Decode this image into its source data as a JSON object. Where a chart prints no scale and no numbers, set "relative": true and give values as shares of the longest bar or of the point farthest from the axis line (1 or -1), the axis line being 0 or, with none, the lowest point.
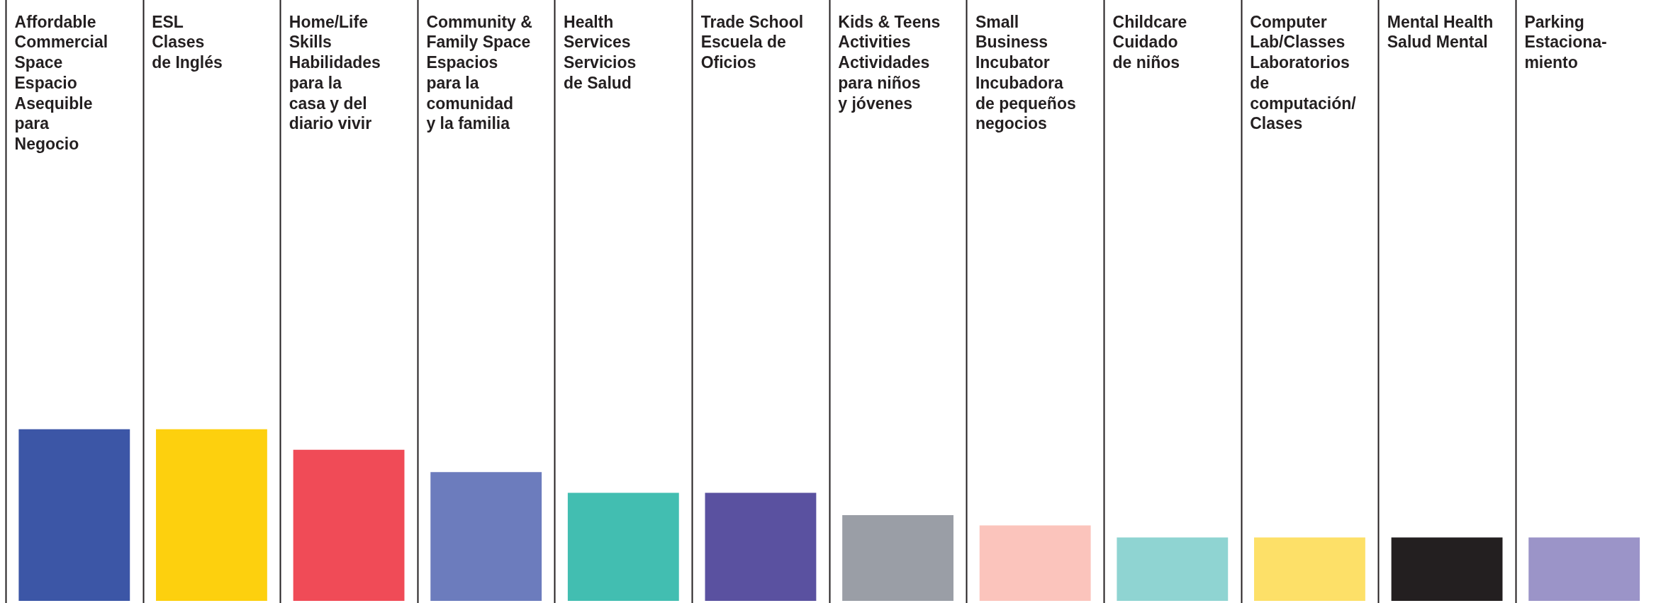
{
  "chart_data": {
    "type": "bar",
    "relative": true,
    "grid": "x",
    "legend": false,
    "categories": [
      "Affordable\nCommercial\nSpace\nEspacio\nAsequible\npara\nNegocio",
      "ESL\nClases\nde Inglés",
      "Home/Life\nSkills\nHabilidades\npara la\ncasa y del\ndiario vivir",
      "Community &\nFamily Space\nEspacios\npara la\ncomunidad\ny la familia",
      "Health\nServices\nServicios\nde Salud",
      "Trade School\nEscuela de\nOficios",
      "Kids & Teens\nActivities\nActividades\npara niños\ny jóvenes",
      "Small\nBusiness\nIncubator\nIncubadora\nde pequeños\nnegocios",
      "Childcare\nCuidado\nde niños",
      "Computer\nLab/Classes\nLaboratorios\nde\ncomputación/\nClases",
      "Mental Health\nSalud Mental",
      "Parking\nEstaciona-\nmiento"
    ],
    "values": [
      1,
      1,
      0.88,
      0.75,
      0.63,
      0.63,
      0.5,
      0.44,
      0.37,
      0.37,
      0.37,
      0.37
    ],
    "colors": [
      "#3c56a6",
      "#fdd00e",
      "#f04b57",
      "#6c7cbd",
      "#42beb1",
      "#5a51a0",
      "#9a9ea6",
      "#fbc4bc",
      "#8fd4d2",
      "#fde068",
      "#231f20",
      "#9b94c8"
    ]
  }
}
